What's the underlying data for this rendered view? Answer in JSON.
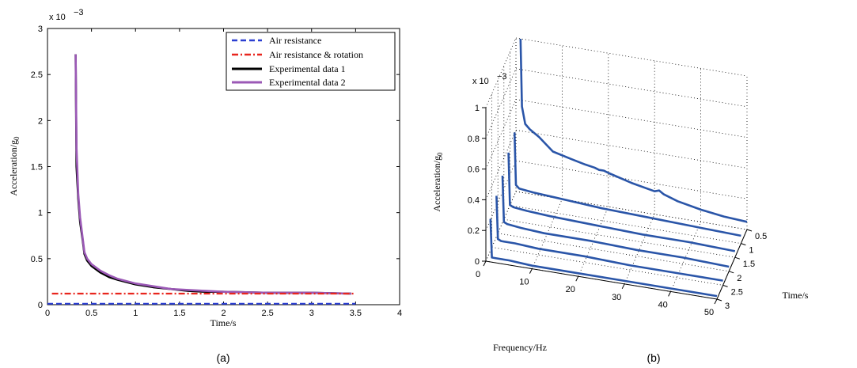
{
  "chart_data": [
    {
      "type": "line",
      "caption": "(a)",
      "xlabel": "Time/s",
      "ylabel": "Acceleration/g",
      "ylabel_sub": "0",
      "exponent_base": "x 10",
      "exponent": "−3",
      "xlim": [
        0,
        4
      ],
      "ylim": [
        0,
        3
      ],
      "xticks": [
        "0",
        "0.5",
        "1",
        "1.5",
        "2",
        "2.5",
        "3",
        "3.5",
        "4"
      ],
      "yticks": [
        "0",
        "0.5",
        "1",
        "1.5",
        "2",
        "2.5",
        "3"
      ],
      "legend_position": "top-right",
      "colors": {
        "air_resistance": "#2b3fd1",
        "air_rotation": "#e8261e",
        "exp1": "#000000",
        "exp2": "#9b59b6"
      },
      "series": [
        {
          "name": "Air resistance",
          "style": "dashed",
          "x": [
            0,
            3.5
          ],
          "y": [
            0.01,
            0.01
          ]
        },
        {
          "name": "Air resistance & rotation",
          "style": "dashdot",
          "x": [
            0.05,
            3.5
          ],
          "y": [
            0.12,
            0.12
          ]
        },
        {
          "name": "Experimental data 1",
          "style": "solid",
          "x": [
            0.32,
            0.33,
            0.35,
            0.37,
            0.4,
            0.42,
            0.45,
            0.5,
            0.6,
            0.7,
            0.8,
            1.0,
            1.2,
            1.4,
            1.6,
            1.8,
            2.0,
            2.5,
            3.0,
            3.45
          ],
          "y": [
            2.72,
            1.5,
            1.15,
            0.9,
            0.7,
            0.55,
            0.48,
            0.42,
            0.35,
            0.3,
            0.27,
            0.22,
            0.19,
            0.17,
            0.15,
            0.14,
            0.14,
            0.13,
            0.13,
            0.12
          ]
        },
        {
          "name": "Experimental data 2",
          "style": "solid",
          "x": [
            0.32,
            0.33,
            0.35,
            0.37,
            0.4,
            0.42,
            0.45,
            0.5,
            0.6,
            0.7,
            0.8,
            1.0,
            1.2,
            1.4,
            1.6,
            1.8,
            2.0,
            2.5,
            3.0,
            3.45
          ],
          "y": [
            2.72,
            1.7,
            1.2,
            0.95,
            0.72,
            0.57,
            0.5,
            0.44,
            0.37,
            0.32,
            0.28,
            0.23,
            0.2,
            0.17,
            0.16,
            0.15,
            0.14,
            0.13,
            0.13,
            0.12
          ]
        }
      ]
    },
    {
      "type": "line",
      "caption": "(b)",
      "xlabel": "Frequency/Hz",
      "ylabel": "Acceleration/g",
      "ylabel_sub": "0",
      "depth_label": "Time/s",
      "exponent_base": "x 10",
      "exponent": "−3",
      "xlim": [
        0,
        50
      ],
      "ylim": [
        0,
        1
      ],
      "depth_lim": [
        0.5,
        3
      ],
      "xticks": [
        "0",
        "10",
        "20",
        "30",
        "40",
        "50"
      ],
      "yticks": [
        "0",
        "0.2",
        "0.4",
        "0.6",
        "0.8",
        "1"
      ],
      "depth_ticks": [
        "0.5",
        "1",
        "1.5",
        "2",
        "2.5",
        "3"
      ],
      "line_color": "#2a55a8",
      "series": [
        {
          "time": 0.5,
          "x": [
            1,
            1.3,
            2,
            3,
            5,
            8,
            12,
            15,
            17,
            18,
            19,
            20,
            25,
            30,
            31,
            32,
            35,
            40,
            45,
            50
          ],
          "y": [
            1.0,
            0.56,
            0.45,
            0.42,
            0.38,
            0.3,
            0.27,
            0.25,
            0.24,
            0.23,
            0.23,
            0.22,
            0.18,
            0.15,
            0.16,
            0.14,
            0.11,
            0.08,
            0.06,
            0.05
          ]
        },
        {
          "time": 1.0,
          "x": [
            1,
            1.3,
            2,
            5,
            10,
            20,
            30,
            40,
            50
          ],
          "y": [
            0.48,
            0.14,
            0.12,
            0.11,
            0.1,
            0.08,
            0.07,
            0.06,
            0.05
          ]
        },
        {
          "time": 1.5,
          "x": [
            1,
            1.3,
            2,
            5,
            10,
            20,
            30,
            40,
            50
          ],
          "y": [
            0.44,
            0.1,
            0.09,
            0.08,
            0.07,
            0.06,
            0.05,
            0.05,
            0.04
          ]
        },
        {
          "time": 2.0,
          "x": [
            1,
            1.3,
            2,
            5,
            10,
            20,
            30,
            40,
            50
          ],
          "y": [
            0.38,
            0.08,
            0.07,
            0.06,
            0.05,
            0.05,
            0.04,
            0.04,
            0.03
          ]
        },
        {
          "time": 2.5,
          "x": [
            1,
            1.3,
            2,
            5,
            10,
            20,
            30,
            40,
            50
          ],
          "y": [
            0.34,
            0.06,
            0.05,
            0.05,
            0.04,
            0.04,
            0.03,
            0.03,
            0.03
          ]
        },
        {
          "time": 3.0,
          "x": [
            1,
            1.3,
            2,
            5,
            10,
            20,
            30,
            40,
            50
          ],
          "y": [
            0.28,
            0.03,
            0.03,
            0.03,
            0.02,
            0.02,
            0.02,
            0.02,
            0.02
          ]
        }
      ]
    }
  ]
}
